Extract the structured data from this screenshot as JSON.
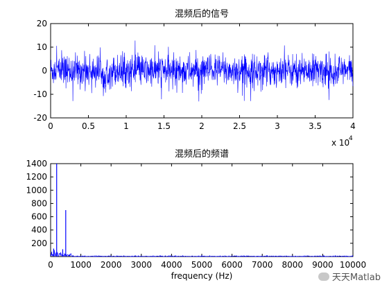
{
  "chart_data": [
    {
      "type": "line",
      "title": "混频后的信号",
      "xlabel": "",
      "ylabel": "",
      "x_multiplier_label": "x 10",
      "x_multiplier_exp": "4",
      "xlim": [
        0,
        4
      ],
      "ylim": [
        -20,
        20
      ],
      "xticks": [
        "0",
        "0.5",
        "1",
        "1.5",
        "2",
        "2.5",
        "3",
        "3.5",
        "4"
      ],
      "yticks": [
        "-20",
        "-10",
        "0",
        "10",
        "20"
      ],
      "signal": {
        "mean": 0,
        "typical_amplitude": 6,
        "peak_amplitude": 13,
        "samples": 40000
      },
      "color": "#0000ff"
    },
    {
      "type": "line",
      "title": "混频后的频谱",
      "xlabel": "frequency (Hz)",
      "ylabel": "",
      "xlim": [
        0,
        10000
      ],
      "ylim": [
        0,
        1400
      ],
      "xticks": [
        "0",
        "1000",
        "2000",
        "3000",
        "4000",
        "5000",
        "6000",
        "7000",
        "8000",
        "9000",
        "10000"
      ],
      "yticks": [
        "200",
        "400",
        "600",
        "800",
        "1000",
        "1200",
        "1400"
      ],
      "peaks": [
        {
          "x": 200,
          "y": 1400
        },
        {
          "x": 500,
          "y": 700
        },
        {
          "x": 100,
          "y": 120
        },
        {
          "x": 400,
          "y": 110
        }
      ],
      "noise_floor": 5,
      "color": "#0000ff"
    }
  ],
  "watermark": {
    "text": "天天Matlab"
  }
}
